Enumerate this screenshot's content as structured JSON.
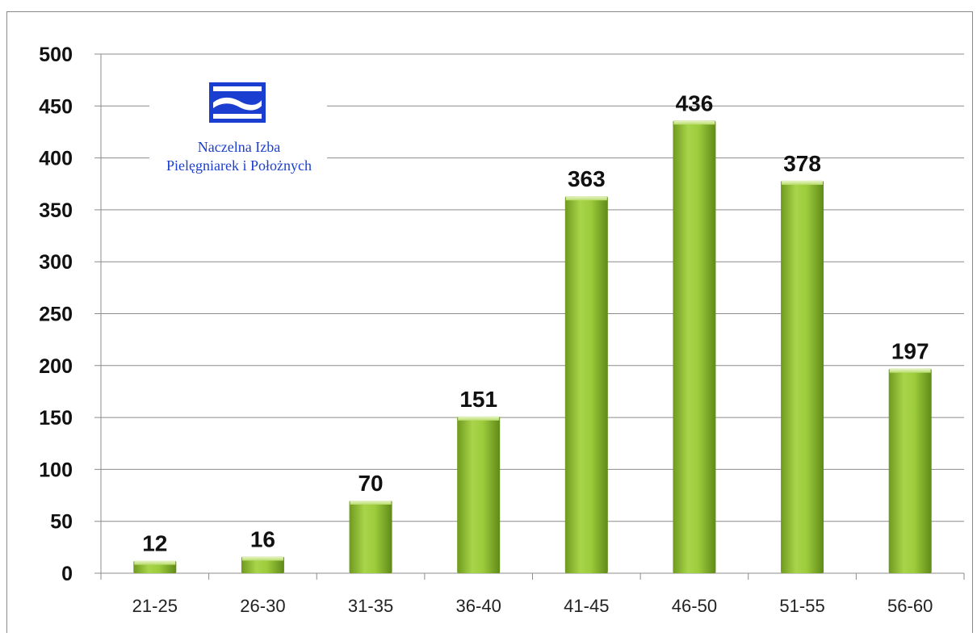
{
  "logo": {
    "line1": "Naczelna Izba",
    "line2": "Pielęgniarek i Położnych",
    "color": "#1a3fd0"
  },
  "chart_data": {
    "type": "bar",
    "title": "",
    "xlabel": "",
    "ylabel": "",
    "categories": [
      "21-25",
      "26-30",
      "31-35",
      "36-40",
      "41-45",
      "46-50",
      "51-55",
      "56-60"
    ],
    "values": [
      12,
      16,
      70,
      151,
      363,
      436,
      378,
      197
    ],
    "ylim": [
      0,
      500
    ],
    "yticks": [
      0,
      50,
      100,
      150,
      200,
      250,
      300,
      350,
      400,
      450,
      500
    ],
    "grid": true,
    "bar_color": "#9ccc3c",
    "data_labels": true
  }
}
